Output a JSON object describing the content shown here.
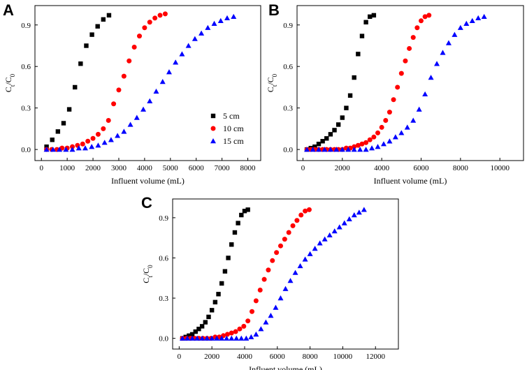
{
  "figure": {
    "panels": [
      "A",
      "B",
      "C"
    ],
    "series_names": [
      "5 cm",
      "10 cm",
      "15 cm"
    ],
    "colors": {
      "s5": "#000000",
      "s10": "#ff0000",
      "s15": "#0000ff"
    },
    "markers": {
      "s5": "square",
      "s10": "circle",
      "s15": "triangle"
    }
  },
  "chart_data": [
    {
      "panel": "A",
      "type": "scatter",
      "xlabel": "Influent volume (mL)",
      "ylabel": "Ct/C0",
      "xlim": [
        -250,
        8500
      ],
      "ylim": [
        -0.08,
        1.04
      ],
      "xticks": [
        0,
        1000,
        2000,
        3000,
        4000,
        5000,
        6000,
        7000,
        8000
      ],
      "yticks": [
        0.0,
        0.3,
        0.6,
        0.9
      ],
      "ytick_labels": [
        "0.0",
        "0.3",
        "0.6",
        "0.9"
      ],
      "legend": {
        "position": "right-middle",
        "entries": [
          "5 cm",
          "10 cm",
          "15 cm"
        ]
      },
      "series": [
        {
          "name": "5 cm",
          "x": [
            200,
            420,
            640,
            860,
            1080,
            1300,
            1520,
            1740,
            1960,
            2180,
            2400,
            2620
          ],
          "y": [
            0.02,
            0.07,
            0.13,
            0.19,
            0.29,
            0.45,
            0.62,
            0.75,
            0.83,
            0.89,
            0.94,
            0.97
          ]
        },
        {
          "name": "10 cm",
          "x": [
            200,
            400,
            600,
            800,
            1000,
            1200,
            1400,
            1600,
            1800,
            2000,
            2200,
            2400,
            2600,
            2800,
            3000,
            3200,
            3400,
            3600,
            3800,
            4000,
            4200,
            4400,
            4600,
            4800
          ],
          "y": [
            0.0,
            0.0,
            0.0,
            0.01,
            0.01,
            0.02,
            0.03,
            0.04,
            0.06,
            0.08,
            0.11,
            0.15,
            0.21,
            0.33,
            0.43,
            0.53,
            0.64,
            0.74,
            0.82,
            0.88,
            0.92,
            0.95,
            0.97,
            0.98
          ]
        },
        {
          "name": "15 cm",
          "x": [
            200,
            450,
            700,
            950,
            1200,
            1450,
            1700,
            1950,
            2200,
            2450,
            2700,
            2950,
            3200,
            3450,
            3700,
            3950,
            4200,
            4450,
            4700,
            4950,
            5200,
            5450,
            5700,
            5950,
            6200,
            6450,
            6700,
            6950,
            7200,
            7450
          ],
          "y": [
            0.0,
            0.0,
            0.0,
            0.0,
            0.0,
            0.01,
            0.01,
            0.02,
            0.03,
            0.05,
            0.07,
            0.1,
            0.13,
            0.18,
            0.23,
            0.29,
            0.35,
            0.42,
            0.49,
            0.56,
            0.63,
            0.69,
            0.75,
            0.8,
            0.84,
            0.88,
            0.91,
            0.93,
            0.95,
            0.96
          ]
        }
      ]
    },
    {
      "panel": "B",
      "type": "scatter",
      "xlabel": "Influent volume (mL)",
      "ylabel": "Ct/C0",
      "xlim": [
        -300,
        11200
      ],
      "ylim": [
        -0.08,
        1.04
      ],
      "xticks": [
        0,
        2000,
        4000,
        6000,
        8000,
        10000
      ],
      "yticks": [
        0.0,
        0.3,
        0.6,
        0.9
      ],
      "ytick_labels": [
        "0.0",
        "0.3",
        "0.6",
        "0.9"
      ],
      "series": [
        {
          "name": "5 cm",
          "x": [
            200,
            400,
            600,
            800,
            1000,
            1200,
            1400,
            1600,
            1800,
            2000,
            2200,
            2400,
            2600,
            2800,
            3000,
            3200,
            3400,
            3600
          ],
          "y": [
            0.0,
            0.01,
            0.02,
            0.04,
            0.06,
            0.08,
            0.11,
            0.14,
            0.18,
            0.23,
            0.3,
            0.39,
            0.52,
            0.69,
            0.82,
            0.92,
            0.96,
            0.97
          ]
        },
        {
          "name": "10 cm",
          "x": [
            200,
            400,
            600,
            800,
            1000,
            1200,
            1400,
            1600,
            1800,
            2000,
            2200,
            2400,
            2600,
            2800,
            3000,
            3200,
            3400,
            3600,
            3800,
            4000,
            4200,
            4400,
            4600,
            4800,
            5000,
            5200,
            5400,
            5600,
            5800,
            6000,
            6200,
            6400
          ],
          "y": [
            0.0,
            0.0,
            0.0,
            0.0,
            0.0,
            0.0,
            0.0,
            0.0,
            0.0,
            0.0,
            0.01,
            0.01,
            0.02,
            0.03,
            0.04,
            0.05,
            0.07,
            0.09,
            0.12,
            0.16,
            0.21,
            0.27,
            0.36,
            0.45,
            0.55,
            0.64,
            0.73,
            0.81,
            0.88,
            0.93,
            0.96,
            0.97
          ]
        },
        {
          "name": "15 cm",
          "x": [
            200,
            500,
            800,
            1100,
            1400,
            1700,
            2000,
            2300,
            2600,
            2900,
            3200,
            3500,
            3800,
            4100,
            4400,
            4700,
            5000,
            5300,
            5600,
            5900,
            6200,
            6500,
            6800,
            7100,
            7400,
            7700,
            8000,
            8300,
            8600,
            8900,
            9200
          ],
          "y": [
            0.0,
            0.0,
            0.0,
            0.0,
            0.0,
            0.0,
            0.0,
            0.0,
            0.0,
            0.0,
            0.0,
            0.01,
            0.02,
            0.04,
            0.06,
            0.09,
            0.12,
            0.16,
            0.21,
            0.29,
            0.4,
            0.52,
            0.62,
            0.7,
            0.77,
            0.83,
            0.88,
            0.91,
            0.93,
            0.95,
            0.96
          ]
        }
      ]
    },
    {
      "panel": "C",
      "type": "scatter",
      "xlabel": "Influent volume (mL)",
      "ylabel": "Ct/C0",
      "xlim": [
        -400,
        13400
      ],
      "ylim": [
        -0.08,
        1.04
      ],
      "xticks": [
        0,
        2000,
        4000,
        6000,
        8000,
        10000,
        12000
      ],
      "yticks": [
        0.0,
        0.3,
        0.6,
        0.9
      ],
      "ytick_labels": [
        "0.0",
        "0.3",
        "0.6",
        "0.9"
      ],
      "series": [
        {
          "name": "5 cm",
          "x": [
            200,
            400,
            600,
            800,
            1000,
            1200,
            1400,
            1600,
            1800,
            2000,
            2200,
            2400,
            2600,
            2800,
            3000,
            3200,
            3400,
            3600,
            3800,
            4000,
            4200
          ],
          "y": [
            0.0,
            0.01,
            0.02,
            0.03,
            0.05,
            0.07,
            0.09,
            0.12,
            0.16,
            0.21,
            0.27,
            0.33,
            0.41,
            0.5,
            0.6,
            0.7,
            0.79,
            0.86,
            0.92,
            0.95,
            0.96
          ]
        },
        {
          "name": "10 cm",
          "x": [
            200,
            450,
            700,
            950,
            1200,
            1450,
            1700,
            1950,
            2200,
            2450,
            2700,
            2950,
            3200,
            3450,
            3700,
            3950,
            4200,
            4450,
            4700,
            4950,
            5200,
            5450,
            5700,
            5950,
            6200,
            6450,
            6700,
            6950,
            7200,
            7450,
            7700,
            7950
          ],
          "y": [
            0.0,
            0.0,
            0.0,
            0.0,
            0.0,
            0.0,
            0.0,
            0.0,
            0.01,
            0.01,
            0.02,
            0.03,
            0.04,
            0.05,
            0.07,
            0.09,
            0.13,
            0.2,
            0.28,
            0.36,
            0.44,
            0.51,
            0.58,
            0.64,
            0.69,
            0.74,
            0.79,
            0.84,
            0.88,
            0.92,
            0.95,
            0.96
          ]
        },
        {
          "name": "15 cm",
          "x": [
            200,
            500,
            800,
            1100,
            1400,
            1700,
            2000,
            2300,
            2600,
            2900,
            3200,
            3500,
            3800,
            4100,
            4400,
            4700,
            5000,
            5300,
            5600,
            5900,
            6200,
            6500,
            6800,
            7100,
            7400,
            7700,
            8000,
            8300,
            8600,
            8900,
            9200,
            9500,
            9800,
            10100,
            10400,
            10700,
            11000,
            11300
          ],
          "y": [
            0.0,
            0.0,
            0.0,
            0.0,
            0.0,
            0.0,
            0.0,
            0.0,
            0.0,
            0.0,
            0.0,
            0.0,
            0.0,
            0.0,
            0.01,
            0.03,
            0.07,
            0.12,
            0.17,
            0.23,
            0.3,
            0.37,
            0.43,
            0.49,
            0.54,
            0.59,
            0.63,
            0.67,
            0.71,
            0.74,
            0.77,
            0.8,
            0.83,
            0.86,
            0.89,
            0.92,
            0.94,
            0.96
          ]
        }
      ]
    }
  ]
}
